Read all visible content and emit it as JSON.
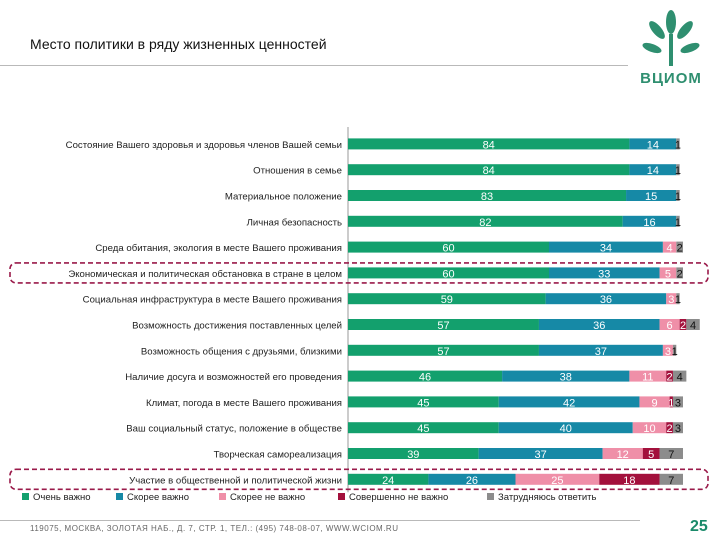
{
  "header": {
    "title": "Место политики в ряду жизненных ценностей",
    "logo_text": "ВЦИОМ"
  },
  "footer": {
    "text": "119075, МОСКВА, ЗОЛОТАЯ НАБ., Д. 7, СТР. 1, ТЕЛ.: (495) 748-08-07, WWW.WCIOM.RU",
    "page_number": "25"
  },
  "colors": {
    "very_important": "#13a06d",
    "rather_important": "#1689a6",
    "rather_not_important": "#ef8fa8",
    "not_at_all": "#a3103c",
    "hard_to_say": "#8c8c8c",
    "highlight": "#9a1a4a"
  },
  "chart_data": {
    "type": "bar",
    "orientation": "horizontal",
    "stacked": true,
    "categories": [
      "Состояние Вашего здоровья и здоровья членов Вашей семьи",
      "Отношения в семье",
      "Материальное положение",
      "Личная безопасность",
      "Среда обитания, экология в месте Вашего проживания",
      "Экономическая и политическая обстановка в стране в целом",
      "Социальная инфраструктура в месте Вашего проживания",
      "Возможность достижения поставленных целей",
      "Возможность общения с друзьями, близкими",
      "Наличие досуга и возможностей его проведения",
      "Климат, погода в месте Вашего проживания",
      "Ваш социальный статус, положение в обществе",
      "Творческая самореализация",
      "Участие в общественной и политической жизни"
    ],
    "series": [
      {
        "name": "Очень важно",
        "values": [
          84,
          84,
          83,
          82,
          60,
          60,
          59,
          57,
          57,
          46,
          45,
          45,
          39,
          24
        ]
      },
      {
        "name": "Скорее важно",
        "values": [
          14,
          14,
          15,
          16,
          34,
          33,
          36,
          36,
          37,
          38,
          42,
          40,
          37,
          26
        ]
      },
      {
        "name": "Скорее не важно",
        "values": [
          0,
          0,
          0,
          0,
          4,
          5,
          3,
          6,
          3,
          11,
          9,
          10,
          12,
          25
        ]
      },
      {
        "name": "Совершенно не важно",
        "values": [
          0,
          0,
          0,
          0,
          0,
          0,
          0,
          2,
          0,
          2,
          1,
          2,
          5,
          18
        ]
      },
      {
        "name": "Затрудняюсь ответить",
        "values": [
          1,
          1,
          1,
          1,
          2,
          2,
          1,
          4,
          1,
          4,
          3,
          3,
          7,
          7
        ]
      }
    ],
    "data_labels": [
      [
        "84",
        "14",
        "",
        "",
        "1"
      ],
      [
        "84",
        "14",
        "",
        "",
        "1"
      ],
      [
        "83",
        "15",
        "",
        "",
        "1"
      ],
      [
        "82",
        "16",
        "",
        "",
        "1"
      ],
      [
        "60",
        "34",
        "4",
        "",
        "2"
      ],
      [
        "60",
        "33",
        "5",
        "",
        "2"
      ],
      [
        "59",
        "36",
        "3",
        "",
        "1"
      ],
      [
        "57",
        "36",
        "6",
        "2",
        "4"
      ],
      [
        "57",
        "37",
        "3",
        "",
        "1"
      ],
      [
        "46",
        "38",
        "11",
        "2",
        "4"
      ],
      [
        "45",
        "42",
        "9",
        "1",
        "3"
      ],
      [
        "45",
        "40",
        "10",
        "2",
        "3"
      ],
      [
        "39",
        "37",
        "12",
        "5",
        "7"
      ],
      [
        "24",
        "26",
        "25",
        "18",
        "7"
      ]
    ],
    "highlighted_categories": [
      5,
      13
    ],
    "xlim": [
      0,
      100
    ],
    "legend_position": "bottom"
  }
}
